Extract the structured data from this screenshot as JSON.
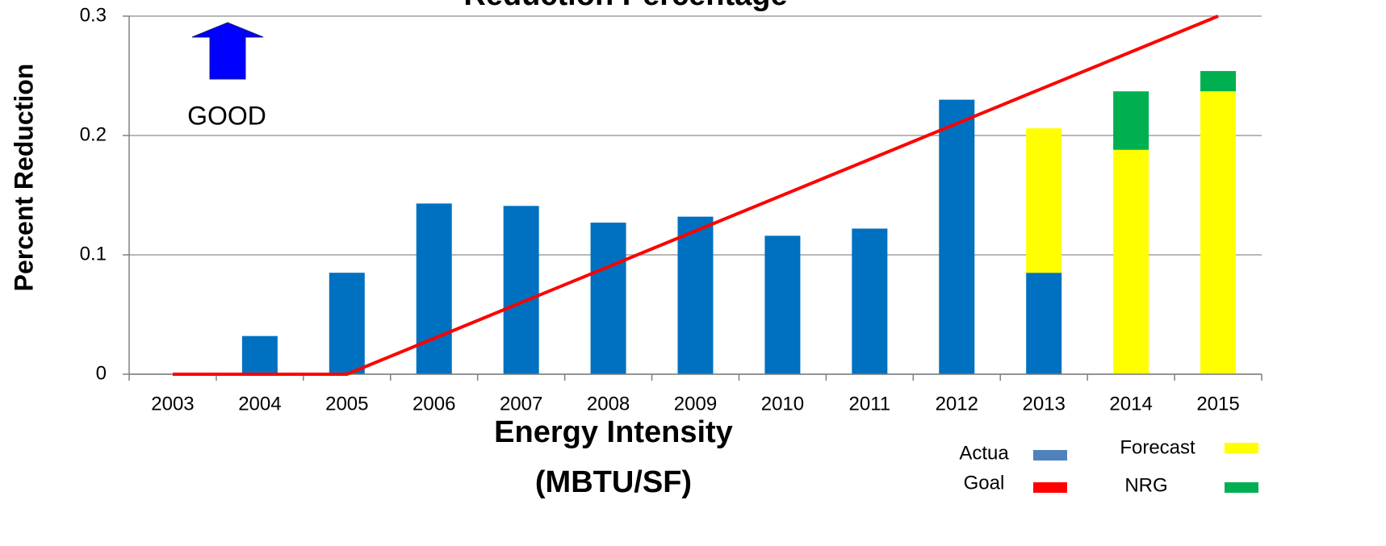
{
  "chart_data": {
    "type": "bar",
    "title": "Reduction Percentage",
    "y_label": "Percent Reduction",
    "x_label": [
      "Energy Intensity",
      "(MBTU/SF)"
    ],
    "annotation": "GOOD",
    "categories": [
      "2003",
      "2004",
      "2005",
      "2006",
      "2007",
      "2008",
      "2009",
      "2010",
      "2011",
      "2012",
      "2013",
      "2014",
      "2015"
    ],
    "series": [
      {
        "name": "Actua",
        "type": "bar",
        "color": "#0070c0",
        "values": [
          0,
          0.032,
          0.085,
          0.143,
          0.141,
          0.127,
          0.132,
          0.116,
          0.122,
          0.23,
          0.085,
          null,
          null
        ]
      },
      {
        "name": "Goal",
        "type": "line",
        "color": "#ff0000",
        "values": [
          0,
          0,
          0,
          0.03,
          0.06,
          0.09,
          0.12,
          0.15,
          0.18,
          0.21,
          0.24,
          0.27,
          0.3
        ]
      },
      {
        "name": "Forecast",
        "type": "bar",
        "color": "#ffff00",
        "values": [
          null,
          null,
          null,
          null,
          null,
          null,
          null,
          null,
          null,
          null,
          0.121,
          0.188,
          0.237
        ]
      },
      {
        "name": "NRG",
        "type": "bar",
        "color": "#00b050",
        "values": [
          null,
          null,
          null,
          null,
          null,
          null,
          null,
          null,
          null,
          null,
          null,
          0.049,
          0.017
        ]
      }
    ],
    "stacked": true,
    "ylim": [
      0,
      0.3
    ],
    "yticks": [
      0,
      0.1,
      0.2,
      0.3
    ],
    "grid": true
  }
}
